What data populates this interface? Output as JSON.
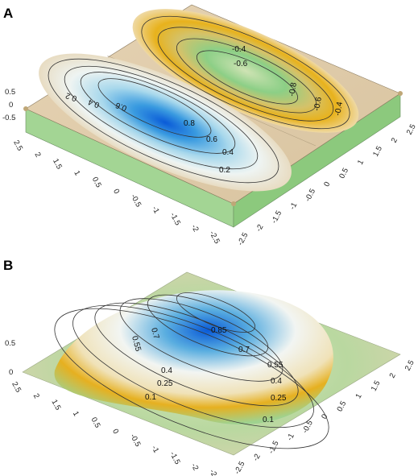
{
  "chart_data": [
    {
      "panel": "A",
      "type": "surface-contour",
      "x_ticks": [
        "2.5",
        "2",
        "1.5",
        "1",
        "0.5",
        "0",
        "-0.5",
        "-1",
        "-1.5",
        "-2",
        "-2.5"
      ],
      "y_ticks": [
        "2.5",
        "2",
        "1.5",
        "1",
        "0.5",
        "0",
        "-0.5",
        "-1",
        "-1.5",
        "-2",
        "-2.5"
      ],
      "z_ticks": [
        "0.5",
        "0",
        "-0.5"
      ],
      "xlim": [
        -2.5,
        2.5
      ],
      "ylim": [
        -2.5,
        2.5
      ],
      "zlim": [
        -1,
        1
      ],
      "positive_lobe_levels": [
        0.2,
        0.4,
        0.6,
        0.8
      ],
      "positive_lobe_labels": [
        "0.2",
        "0.4",
        "0.6",
        "0.8",
        "0.6",
        "0.4",
        "0.2"
      ],
      "negative_lobe_levels": [
        -0.2,
        -0.4,
        -0.6,
        -0.8
      ],
      "negative_lobe_labels": [
        "-0.4",
        "-0.6",
        "-0.8",
        "-0.6",
        "-0.4"
      ],
      "colors": {
        "positive_peak": "#1f6fd6",
        "negative_peak": "#e0a000",
        "zero_plane": "#dcc8a8",
        "side_wall": "#9fd28f"
      }
    },
    {
      "panel": "B",
      "type": "surface-contour",
      "x_ticks": [
        "2.5",
        "2",
        "1.5",
        "1",
        "0.5",
        "0",
        "-0.5",
        "-1",
        "-1.5",
        "-2",
        "-2.5"
      ],
      "y_ticks": [
        "2.5",
        "2",
        "1.5",
        "1",
        "0.5",
        "0",
        "-0.5",
        "-1",
        "-1.5",
        "-2",
        "-2.5"
      ],
      "z_ticks": [
        "0.5",
        "0"
      ],
      "xlim": [
        -2.5,
        2.5
      ],
      "ylim": [
        -2.5,
        2.5
      ],
      "zlim": [
        0,
        1
      ],
      "levels": [
        0.1,
        0.25,
        0.4,
        0.55,
        0.7,
        0.85
      ],
      "contour_labels": [
        "0.85",
        "0.7",
        "0.55",
        "0.4",
        "0.25",
        "0.1",
        "0.7",
        "0.55",
        "0.4",
        "0.25",
        "0.1"
      ],
      "colors": {
        "peak": "#1f6fd6",
        "mid": "#e0a000",
        "base": "#9fd28f"
      }
    }
  ]
}
